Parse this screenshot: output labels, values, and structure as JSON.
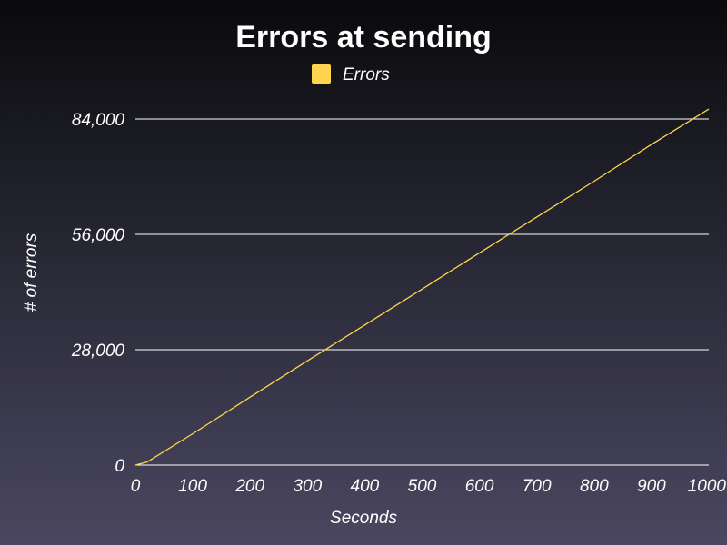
{
  "chart_data": {
    "type": "line",
    "title": "Errors at sending",
    "xlabel": "Seconds",
    "ylabel": "# of errors",
    "xlim": [
      0,
      1000
    ],
    "ylim": [
      0,
      84000
    ],
    "x_ticks": [
      0,
      100,
      200,
      300,
      400,
      500,
      600,
      700,
      800,
      900,
      1000
    ],
    "x_tick_labels": [
      "0",
      "100",
      "200",
      "300",
      "400",
      "500",
      "600",
      "700",
      "800",
      "900",
      "1000"
    ],
    "y_ticks": [
      0,
      28000,
      56000,
      84000
    ],
    "y_tick_labels": [
      "0",
      "28,000",
      "56,000",
      "84,000"
    ],
    "grid": "horizontal",
    "legend_position": "top-center",
    "series": [
      {
        "name": "Errors",
        "color": "#ffd54f",
        "x": [
          0,
          20,
          100,
          200,
          300,
          400,
          500,
          600,
          700,
          800,
          900,
          1000
        ],
        "y": [
          0,
          700,
          7600,
          16500,
          25300,
          34000,
          42700,
          51500,
          60200,
          68900,
          77800,
          86400
        ]
      }
    ]
  }
}
